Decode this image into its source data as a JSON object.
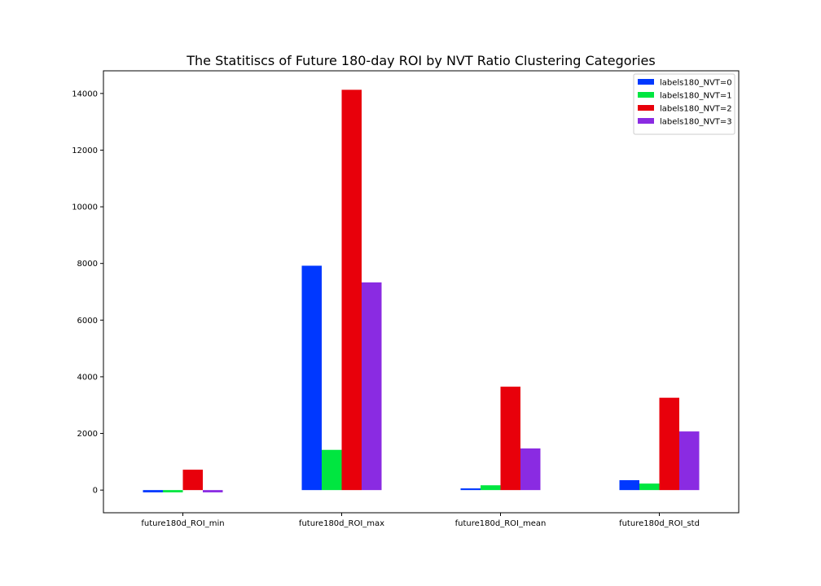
{
  "chart_data": {
    "type": "bar",
    "title": "The Statitiscs of Future 180-day ROI by NVT Ratio Clustering Categories",
    "xlabel": "",
    "ylabel": "",
    "categories": [
      "future180d_ROI_min",
      "future180d_ROI_max",
      "future180d_ROI_mean",
      "future180d_ROI_std"
    ],
    "series": [
      {
        "name": "labels180_NVT=0",
        "color": "#0038ff",
        "values": [
          -80,
          7920,
          60,
          350
        ]
      },
      {
        "name": "labels180_NVT=1",
        "color": "#00e640",
        "values": [
          -80,
          1420,
          170,
          230
        ]
      },
      {
        "name": "labels180_NVT=2",
        "color": "#e8000b",
        "values": [
          720,
          14130,
          3650,
          3260
        ]
      },
      {
        "name": "labels180_NVT=3",
        "color": "#8a2be2",
        "values": [
          -80,
          7330,
          1470,
          2070
        ]
      }
    ],
    "ylim": [
      -800,
      14800
    ],
    "yticks": [
      0,
      2000,
      4000,
      6000,
      8000,
      10000,
      12000,
      14000
    ],
    "grid": false,
    "legend_position": "top-right"
  }
}
